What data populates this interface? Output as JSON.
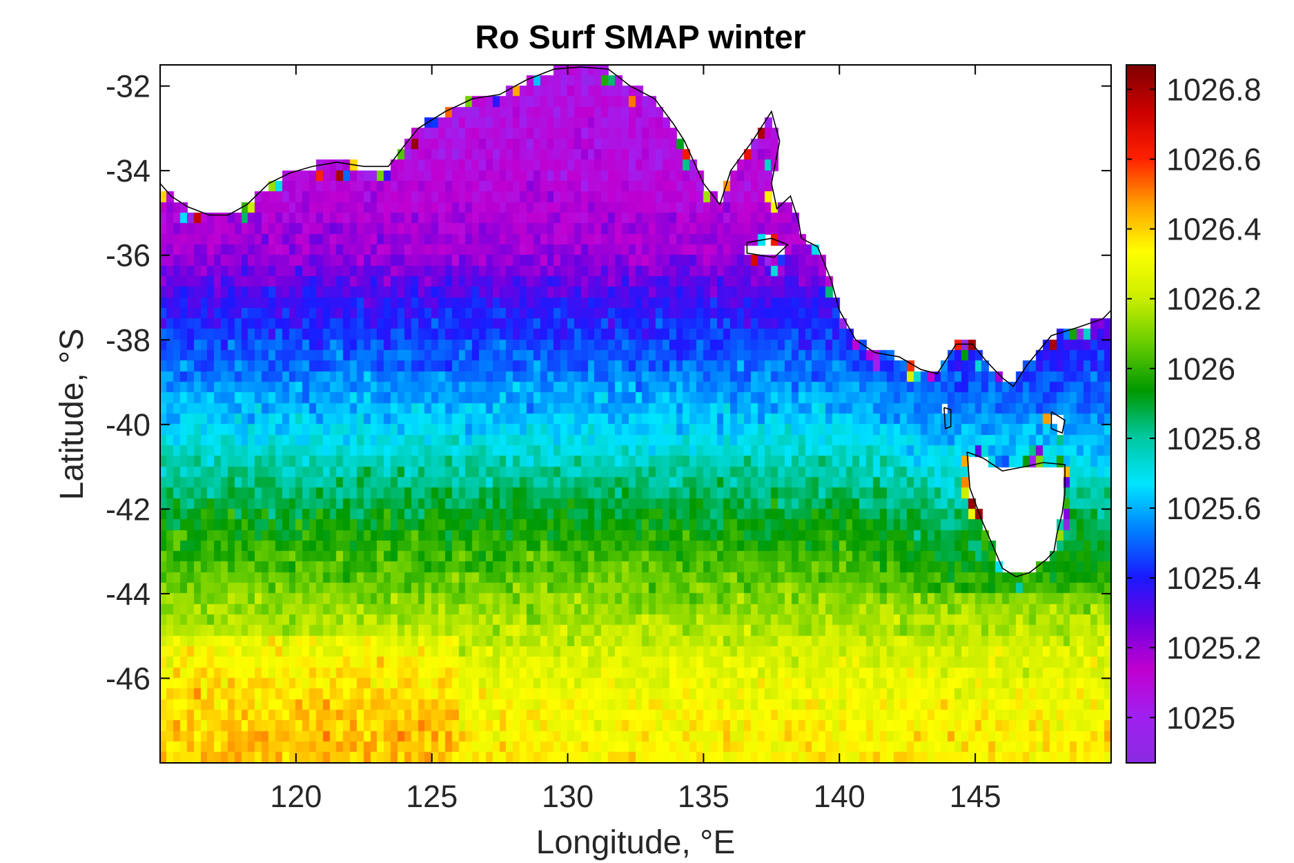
{
  "chart_data": {
    "type": "heatmap",
    "title": "Ro Surf SMAP winter",
    "xlabel": "Longitude, °E",
    "ylabel": "Latitude, °S",
    "xlim": [
      115,
      150
    ],
    "ylim": [
      -48,
      -31.5
    ],
    "xticks": [
      120,
      125,
      130,
      135,
      140,
      145
    ],
    "xtick_labels": [
      "120",
      "125",
      "130",
      "135",
      "140",
      "145"
    ],
    "yticks": [
      -32,
      -34,
      -36,
      -38,
      -40,
      -42,
      -44,
      -46
    ],
    "ytick_labels": [
      "-32",
      "-34",
      "-36",
      "-38",
      "-40",
      "-42",
      "-44",
      "-46"
    ],
    "colorbar": {
      "range": [
        1024.87,
        1026.87
      ],
      "ticks": [
        1025,
        1025.2,
        1025.4,
        1025.6,
        1025.8,
        1026,
        1026.2,
        1026.4,
        1026.6,
        1026.8
      ],
      "tick_labels": [
        "1025",
        "1025.2",
        "1025.4",
        "1025.6",
        "1025.8",
        "1026",
        "1026.2",
        "1026.4",
        "1026.6",
        "1026.8"
      ],
      "colormap": [
        "#8a2be2",
        "#a020f0",
        "#c000d0",
        "#7000e0",
        "#1a1aff",
        "#0080ff",
        "#00e5ff",
        "#00c8a0",
        "#009900",
        "#66cc00",
        "#ccee00",
        "#ffff00",
        "#ffa000",
        "#ff2000",
        "#cc0000",
        "#800000"
      ]
    },
    "grid_resolution_deg": 0.25,
    "latitude_profile": {
      "lat": [
        -32,
        -34,
        -36,
        -37,
        -38,
        -39,
        -40,
        -41,
        -42,
        -43,
        -44,
        -45,
        -46,
        -47,
        -48
      ],
      "density": [
        1025.05,
        1025.1,
        1025.2,
        1025.35,
        1025.45,
        1025.55,
        1025.65,
        1025.78,
        1025.9,
        1026.0,
        1026.1,
        1026.2,
        1026.28,
        1026.33,
        1026.35
      ]
    },
    "land_regions": [
      "Australian mainland (south coast)",
      "Tasmania",
      "Kangaroo Island"
    ],
    "notes": "Density field on a regular grid; land masked in white with black coastline."
  }
}
